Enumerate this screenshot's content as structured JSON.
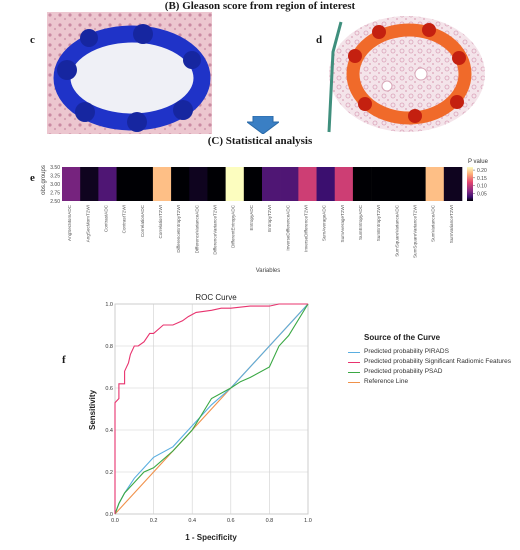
{
  "section_b_title": "(B) Gleason score from region of interest",
  "section_c_title": "(C) Statistical analysis",
  "panel_labels": {
    "c": "c",
    "d": "d",
    "e": "e",
    "f": "f"
  },
  "heatmap": {
    "ylabel": "obs.groups",
    "xlabel": "Variables",
    "yticks": [
      "3.50",
      "3.25",
      "3.00",
      "2.75",
      "2.50"
    ],
    "legend_title": "P value",
    "legend_ticks": [
      "0.20",
      "0.15",
      "0.10",
      "0.05"
    ]
  },
  "roc": {
    "title": "ROC Curve",
    "xlabel": "1 - Specificity",
    "ylabel": "Sensitivity",
    "xticks": [
      "0.0",
      "0.2",
      "0.4",
      "0.6",
      "0.8",
      "1.0"
    ],
    "yticks": [
      "0.0",
      "0.2",
      "0.4",
      "0.6",
      "0.8",
      "1.0"
    ],
    "legend_title": "Source of the Curve",
    "legend": [
      {
        "label": "Predicted probability PIRADS",
        "color": "#5aaee0"
      },
      {
        "label": "Predicted probability Significant Radiomic Features",
        "color": "#e8336e"
      },
      {
        "label": "Predicted probability PSAD",
        "color": "#3aa844"
      },
      {
        "label": "Reference Line",
        "color": "#f0914a"
      }
    ]
  },
  "chart_data": [
    {
      "type": "heatmap",
      "ylabel": "obs.groups",
      "xlabel": "Variables",
      "ylim": [
        2.5,
        3.5
      ],
      "categories": [
        "AngSecMomADC",
        "AngSecMomT2WI",
        "ContrastADC",
        "ContrastT2WI",
        "CorrelationADC",
        "CorrelationT2WI",
        "DifferenceEntropyT2WI",
        "DifferenceVarianceADC",
        "DifferenceVarianceT2WI",
        "DifferentEntropyADC",
        "EntropyADC",
        "EntropyT2WI",
        "InverseDifferenceADC",
        "InverseDifferenceT2WI",
        "SumAverageADC",
        "SumAverageT2WI",
        "SumEntropyADC",
        "SumEntropyT2WI",
        "SumSquareVarianceADC",
        "SumSquareVarianceT2WI",
        "SumVarianceADC",
        "SumVarianceT2WI"
      ],
      "values": [
        0.07,
        0.01,
        0.05,
        0.0,
        0.0,
        0.18,
        0.0,
        0.01,
        0.0,
        0.22,
        0.0,
        0.05,
        0.05,
        0.11,
        0.04,
        0.11,
        0.0,
        0.0,
        0.0,
        0.0,
        0.18,
        0.01
      ],
      "colorbar": {
        "label": "P value",
        "ticks": [
          0.2,
          0.15,
          0.1,
          0.05
        ]
      }
    },
    {
      "type": "line",
      "title": "ROC Curve",
      "xlabel": "1 - Specificity",
      "ylabel": "Sensitivity",
      "xlim": [
        0,
        1
      ],
      "ylim": [
        0,
        1
      ],
      "series": [
        {
          "name": "Predicted probability PIRADS",
          "color": "#5aaee0",
          "x": [
            0,
            0.02,
            0.05,
            0.1,
            0.15,
            0.2,
            0.3,
            0.4,
            0.5,
            0.6,
            0.7,
            0.8,
            0.9,
            1.0
          ],
          "y": [
            0,
            0.05,
            0.1,
            0.17,
            0.22,
            0.27,
            0.32,
            0.42,
            0.52,
            0.6,
            0.7,
            0.8,
            0.9,
            1.0
          ]
        },
        {
          "name": "Predicted probability Significant Radiomic Features",
          "color": "#e8336e",
          "x": [
            0,
            0.0,
            0.02,
            0.02,
            0.05,
            0.05,
            0.07,
            0.08,
            0.1,
            0.12,
            0.15,
            0.18,
            0.2,
            0.25,
            0.3,
            0.35,
            0.38,
            0.42,
            0.5,
            0.55,
            0.6,
            0.7,
            0.8,
            0.85,
            0.9,
            1.0
          ],
          "y": [
            0,
            0.53,
            0.55,
            0.62,
            0.62,
            0.68,
            0.72,
            0.76,
            0.8,
            0.8,
            0.82,
            0.86,
            0.86,
            0.9,
            0.9,
            0.92,
            0.94,
            0.96,
            0.97,
            0.98,
            0.98,
            0.99,
            0.99,
            1.0,
            1.0,
            1.0
          ]
        },
        {
          "name": "Predicted probability PSAD",
          "color": "#3aa844",
          "x": [
            0,
            0.02,
            0.05,
            0.1,
            0.15,
            0.2,
            0.3,
            0.4,
            0.5,
            0.6,
            0.65,
            0.7,
            0.8,
            0.85,
            0.9,
            1.0
          ],
          "y": [
            0,
            0.05,
            0.1,
            0.15,
            0.2,
            0.22,
            0.3,
            0.4,
            0.55,
            0.6,
            0.63,
            0.65,
            0.7,
            0.8,
            0.85,
            1.0
          ]
        },
        {
          "name": "Reference Line",
          "color": "#f0914a",
          "x": [
            0,
            1
          ],
          "y": [
            0,
            1
          ]
        }
      ]
    }
  ]
}
